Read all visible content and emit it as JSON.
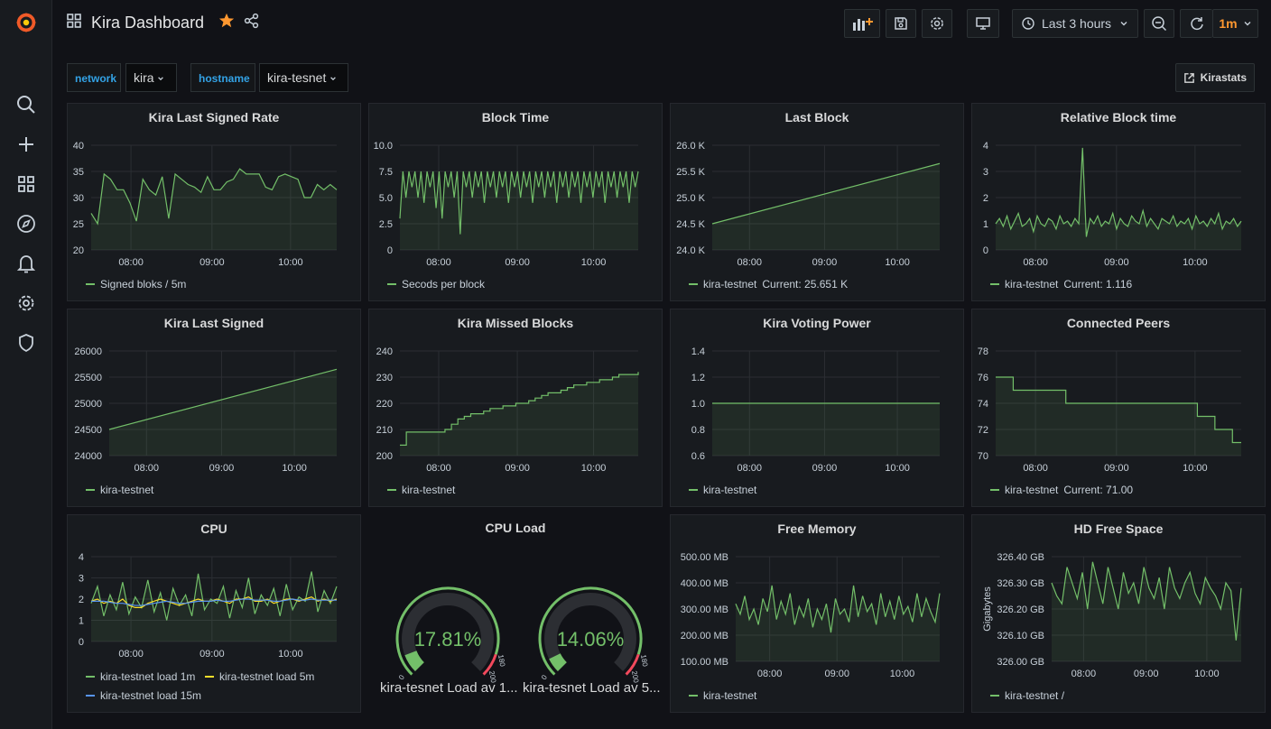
{
  "header": {
    "title": "Kira Dashboard"
  },
  "toolbar": {
    "time_range": "Last 3 hours",
    "refresh_interval": "1m"
  },
  "variables": [
    {
      "label": "network",
      "value": "kira"
    },
    {
      "label": "hostname",
      "value": "kira-tesnet"
    }
  ],
  "link": {
    "label": "Kirastats"
  },
  "colors": {
    "series_green": "#73bf69",
    "series_yellow": "#fade2a",
    "series_cyan": "#5794f2",
    "accent_orange": "#ff9830"
  },
  "panels": [
    {
      "title": "Kira Last Signed Rate",
      "chart_data": {
        "type": "line",
        "ylim": [
          20,
          40
        ],
        "yticks": [
          "40",
          "35",
          "30",
          "25",
          "20"
        ],
        "xticks": [
          "08:00",
          "09:00",
          "10:00"
        ],
        "series": [
          {
            "name": "Signed bloks / 5m",
            "values": [
              27,
              25,
              34.5,
              33.5,
              31.5,
              31.5,
              29,
              25.5,
              33.5,
              31.5,
              30.5,
              34,
              26,
              34.5,
              33.5,
              32.5,
              32,
              31,
              34,
              31.5,
              31.5,
              33,
              33.5,
              35.5,
              34.5,
              34.5,
              34.5,
              32,
              31.5,
              34,
              34.5,
              34,
              33.5,
              30,
              30,
              32.5,
              31.5,
              32.5,
              31.5
            ]
          }
        ]
      },
      "legend": [
        "Signed bloks / 5m"
      ]
    },
    {
      "title": "Block Time",
      "chart_data": {
        "type": "line",
        "ylim": [
          0,
          10
        ],
        "yticks": [
          "10.0",
          "7.5",
          "5.0",
          "2.5",
          "0"
        ],
        "xticks": [
          "08:00",
          "09:00",
          "10:00"
        ],
        "series": [
          {
            "name": "Secods per block",
            "values": [
              3,
              7.5,
              5,
              7.5,
              6,
              7.5,
              5,
              7.5,
              4.5,
              7.5,
              6,
              7.5,
              4,
              7.5,
              3,
              7.5,
              6,
              7.5,
              5,
              7.5,
              1.5,
              7.5,
              6,
              7.5,
              5,
              7.5,
              6,
              7.5,
              4.5,
              7.5,
              6,
              7.5,
              5,
              7.5,
              6,
              7.5,
              4.5,
              7.5,
              6,
              7.5,
              5,
              7.5,
              6,
              7.5,
              4.5,
              7.5,
              6,
              7.5,
              5,
              7.5,
              6,
              7.5,
              4.5,
              7.5,
              6,
              7.5,
              5,
              7.5,
              6,
              7.5,
              4.5,
              7.5,
              6,
              7.5,
              5,
              7.5,
              6,
              7.5,
              4.5,
              7.5,
              6,
              7.5,
              5,
              7.5,
              6,
              7.5,
              4.5,
              7.5,
              6,
              7.5
            ]
          }
        ]
      },
      "legend": [
        "Secods per block"
      ]
    },
    {
      "title": "Last Block",
      "chart_data": {
        "type": "line",
        "ylim": [
          24000,
          26000
        ],
        "yticks": [
          "26.0 K",
          "25.5 K",
          "25.0 K",
          "24.5 K",
          "24.0 K"
        ],
        "xticks": [
          "08:00",
          "09:00",
          "10:00"
        ],
        "series": [
          {
            "name": "kira-testnet",
            "values": [
              24500,
              25651
            ]
          }
        ]
      },
      "legend": [
        "kira-testnet",
        "Current: 25.651 K"
      ]
    },
    {
      "title": "Relative Block time",
      "chart_data": {
        "type": "line",
        "ylim": [
          0,
          4
        ],
        "yticks": [
          "4",
          "3",
          "2",
          "1",
          "0"
        ],
        "xticks": [
          "08:00",
          "09:00",
          "10:00"
        ],
        "series": [
          {
            "name": "kira-testnet",
            "values": [
              1,
              1.2,
              0.9,
              1.3,
              0.8,
              1.1,
              1.4,
              0.9,
              1,
              1.2,
              0.7,
              1.3,
              1,
              0.9,
              1.2,
              1.1,
              0.8,
              1.3,
              1,
              1.1,
              0.9,
              1.2,
              1,
              3.9,
              0.5,
              1.2,
              1,
              1.3,
              0.9,
              1.1,
              1,
              1.4,
              0.8,
              1.2,
              1,
              0.9,
              1.3,
              1.1,
              1,
              1.5,
              0.9,
              1.2,
              1,
              0.8,
              1.2,
              1.1,
              1,
              1.3,
              0.9,
              1.1,
              1,
              1.2,
              0.8,
              1.3,
              1,
              1.1,
              0.9,
              1.2,
              1,
              1.4,
              0.8,
              1.1,
              1,
              1.2,
              0.9,
              1.1
            ]
          }
        ]
      },
      "legend": [
        "kira-testnet",
        "Current: 1.116"
      ]
    },
    {
      "title": "Kira Last Signed",
      "chart_data": {
        "type": "line",
        "ylim": [
          24000,
          26000
        ],
        "yticks": [
          "26000",
          "25500",
          "25000",
          "24500",
          "24000"
        ],
        "xticks": [
          "08:00",
          "09:00",
          "10:00"
        ],
        "series": [
          {
            "name": "kira-testnet",
            "values": [
              24500,
              25650
            ]
          }
        ]
      },
      "legend": [
        "kira-testnet"
      ]
    },
    {
      "title": "Kira Missed Blocks",
      "chart_data": {
        "type": "line",
        "ylim": [
          200,
          240
        ],
        "yticks": [
          "240",
          "230",
          "220",
          "210",
          "200"
        ],
        "xticks": [
          "08:00",
          "09:00",
          "10:00"
        ],
        "series": [
          {
            "name": "kira-testnet",
            "values": [
              204,
              209,
              209,
              209,
              209,
              209,
              209,
              210,
              212,
              214,
              215,
              216,
              216,
              217,
              218,
              218,
              219,
              219,
              220,
              220,
              221,
              222,
              223,
              224,
              224,
              225,
              226,
              227,
              227,
              228,
              228,
              229,
              229,
              230,
              231,
              231,
              231,
              232
            ]
          }
        ]
      },
      "legend": [
        "kira-testnet"
      ]
    },
    {
      "title": "Kira Voting Power",
      "chart_data": {
        "type": "line",
        "ylim": [
          0.6,
          1.4
        ],
        "yticks": [
          "1.4",
          "1.2",
          "1.0",
          "0.8",
          "0.6"
        ],
        "xticks": [
          "08:00",
          "09:00",
          "10:00"
        ],
        "series": [
          {
            "name": "kira-testnet",
            "values": [
              1,
              1
            ]
          }
        ]
      },
      "legend": [
        "kira-testnet"
      ]
    },
    {
      "title": "Connected Peers",
      "chart_data": {
        "type": "line",
        "ylim": [
          70,
          78
        ],
        "yticks": [
          "78",
          "76",
          "74",
          "72",
          "70"
        ],
        "xticks": [
          "08:00",
          "09:00",
          "10:00"
        ],
        "series": [
          {
            "name": "kira-testnet",
            "values": [
              76,
              76,
              75,
              75,
              75,
              75,
              75,
              75,
              74,
              74,
              74,
              74,
              74,
              74,
              74,
              74,
              74,
              74,
              74,
              74,
              74,
              74,
              74,
              73,
              73,
              72,
              72,
              71,
              71
            ]
          }
        ]
      },
      "legend": [
        "kira-testnet",
        "Current: 71.00"
      ]
    },
    {
      "title": "CPU",
      "chart_data": {
        "type": "line",
        "ylim": [
          0,
          4
        ],
        "yticks": [
          "4",
          "3",
          "2",
          "1",
          "0"
        ],
        "xticks": [
          "08:00",
          "09:00",
          "10:00"
        ],
        "series": [
          {
            "name": "kira-testnet load 1m",
            "values": [
              1.8,
              2.6,
              1.2,
              2.2,
              1.5,
              2.8,
              1.3,
              2.1,
              1.6,
              2.9,
              1.4,
              2.3,
              1,
              2.5,
              1.7,
              2.2,
              1.2,
              3.2,
              1.5,
              2,
              1.8,
              2.6,
              1.1,
              2.4,
              1.6,
              3,
              1.3,
              2.2,
              1.7,
              2.5,
              1.2,
              2.7,
              1.5,
              2.1,
              1.9,
              3.3,
              1.4,
              2.4,
              1.8,
              2.6
            ]
          },
          {
            "name": "kira-testnet load 5m",
            "values": [
              1.9,
              2,
              1.8,
              1.9,
              1.8,
              2,
              1.7,
              1.6,
              1.6,
              1.8,
              1.9,
              2,
              1.9,
              1.8,
              1.7,
              1.8,
              1.9,
              2,
              1.9,
              1.9,
              2,
              1.9,
              1.8,
              2,
              2,
              2.1,
              1.9,
              1.9,
              2,
              1.8,
              1.9,
              2,
              2,
              1.9,
              2,
              2.1,
              1.9,
              2,
              1.9,
              2
            ]
          },
          {
            "name": "kira-testnet load 15m",
            "values": [
              1.9,
              1.9,
              1.9,
              1.85,
              1.8,
              1.8,
              1.75,
              1.7,
              1.7,
              1.75,
              1.8,
              1.85,
              1.9,
              1.85,
              1.8,
              1.8,
              1.85,
              1.9,
              1.9,
              1.9,
              1.95,
              1.9,
              1.9,
              1.95,
              2,
              2,
              1.95,
              1.95,
              1.95,
              1.9,
              1.9,
              1.95,
              2,
              1.95,
              1.95,
              2,
              1.95,
              1.95,
              1.95,
              1.95
            ]
          }
        ]
      },
      "legend": [
        "kira-testnet load 1m",
        "kira-testnet load 5m",
        "kira-testnet load 15m"
      ]
    },
    {
      "title": "CPU Load",
      "gauges": [
        {
          "value": 17.81,
          "value_text": "17.81%",
          "min": "0",
          "max": "200",
          "threshold": "180",
          "label": "kira-tesnet Load av 1..."
        },
        {
          "value": 14.06,
          "value_text": "14.06%",
          "min": "0",
          "max": "200",
          "threshold": "180",
          "label": "kira-tesnet Load av 5..."
        }
      ]
    },
    {
      "title": "Free Memory",
      "chart_data": {
        "type": "line",
        "ylim": [
          100,
          500
        ],
        "yticks": [
          "500.00 MB",
          "400.00 MB",
          "300.00 MB",
          "200.00 MB",
          "100.00 MB"
        ],
        "xticks": [
          "08:00",
          "09:00",
          "10:00"
        ],
        "series": [
          {
            "name": "kira-testnet",
            "values": [
              320,
              280,
              350,
              260,
              300,
              240,
              340,
              290,
              390,
              260,
              330,
              280,
              360,
              240,
              310,
              270,
              340,
              230,
              300,
              260,
              320,
              210,
              340,
              280,
              300,
              250,
              390,
              270,
              350,
              290,
              320,
              240,
              360,
              270,
              330,
              260,
              350,
              280,
              310,
              250,
              360,
              270,
              340,
              290,
              250,
              360
            ]
          }
        ]
      },
      "legend": [
        "kira-testnet"
      ]
    },
    {
      "title": "HD Free Space",
      "chart_data": {
        "type": "line",
        "ylim": [
          326.0,
          326.4
        ],
        "yticks": [
          "326.40 GB",
          "326.30 GB",
          "326.20 GB",
          "326.10 GB",
          "326.00 GB"
        ],
        "ylabel": "Gigabytes",
        "xticks": [
          "08:00",
          "09:00",
          "10:00"
        ],
        "series": [
          {
            "name": "kira-testnet /",
            "values": [
              326.3,
              326.25,
              326.22,
              326.36,
              326.3,
              326.24,
              326.34,
              326.2,
              326.38,
              326.3,
              326.22,
              326.36,
              326.28,
              326.2,
              326.34,
              326.26,
              326.3,
              326.22,
              326.36,
              326.28,
              326.24,
              326.32,
              326.2,
              326.36,
              326.28,
              326.24,
              326.3,
              326.34,
              326.26,
              326.22,
              326.32,
              326.28,
              326.25,
              326.2,
              326.3,
              326.27,
              326.08,
              326.28
            ]
          }
        ]
      },
      "legend": [
        "kira-testnet /"
      ]
    }
  ]
}
